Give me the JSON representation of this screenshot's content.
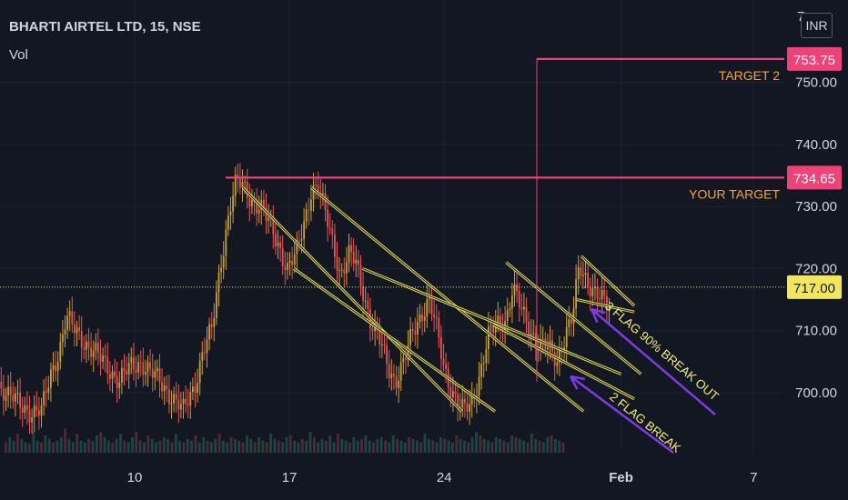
{
  "header": {
    "symbol": "BHARTI AIRTEL LTD, 15, NSE",
    "volume_label": "Vol",
    "currency": "INR"
  },
  "chart_data": {
    "type": "candlestick",
    "title": "BHARTI AIRTEL LTD, 15, NSE",
    "y_ticks": [
      700,
      710,
      720,
      730,
      740,
      750
    ],
    "y_top_partial_label": "7",
    "x_ticks": [
      {
        "label": "10",
        "day": 10
      },
      {
        "label": "17",
        "day": 17
      },
      {
        "label": "24",
        "day": 24
      },
      {
        "label": "Feb",
        "day": 32,
        "bold": true
      },
      {
        "label": "7",
        "day": 38
      }
    ],
    "current_price": 717.0,
    "current_price_label": "717.00",
    "horizontal_levels": [
      {
        "label": "YOUR TARGET",
        "value": 734.65,
        "value_label": "734.65"
      },
      {
        "label": "TARGET 2",
        "value": 753.75,
        "value_label": "753.75"
      }
    ],
    "annotations": [
      {
        "text": "3 FLAG 90% BREAK OUT"
      },
      {
        "text": "2 FLAG BREAK"
      }
    ],
    "price_path": [
      [
        3.0,
        697
      ],
      [
        3.5,
        703
      ],
      [
        4.2,
        700
      ],
      [
        4.8,
        698
      ],
      [
        5.3,
        697
      ],
      [
        5.8,
        697
      ],
      [
        6.2,
        703
      ],
      [
        6.6,
        707
      ],
      [
        6.9,
        712
      ],
      [
        7.3,
        710
      ],
      [
        7.8,
        708
      ],
      [
        8.3,
        706
      ],
      [
        8.8,
        704
      ],
      [
        9.3,
        702
      ],
      [
        9.8,
        704
      ],
      [
        10.3,
        705
      ],
      [
        10.8,
        703
      ],
      [
        11.3,
        701
      ],
      [
        11.8,
        699
      ],
      [
        12.2,
        697
      ],
      [
        12.7,
        701
      ],
      [
        13.1,
        707
      ],
      [
        13.5,
        710
      ],
      [
        13.9,
        721
      ],
      [
        14.3,
        730
      ],
      [
        14.6,
        734
      ],
      [
        14.9,
        733
      ],
      [
        15.3,
        731
      ],
      [
        15.7,
        730
      ],
      [
        16.1,
        727
      ],
      [
        16.5,
        724
      ],
      [
        16.9,
        720
      ],
      [
        17.3,
        722
      ],
      [
        17.7,
        728
      ],
      [
        18.0,
        733
      ],
      [
        18.3,
        733
      ],
      [
        18.6,
        729
      ],
      [
        19.0,
        724
      ],
      [
        19.3,
        719
      ],
      [
        19.7,
        722
      ],
      [
        20.0,
        721
      ],
      [
        20.3,
        717
      ],
      [
        20.7,
        711
      ],
      [
        21.1,
        708
      ],
      [
        21.5,
        704
      ],
      [
        21.8,
        702
      ],
      [
        22.2,
        705
      ],
      [
        22.6,
        710
      ],
      [
        23.0,
        713
      ],
      [
        23.3,
        715
      ],
      [
        23.6,
        711
      ],
      [
        24.0,
        704
      ],
      [
        24.4,
        700
      ],
      [
        24.8,
        697
      ],
      [
        25.2,
        698
      ],
      [
        25.6,
        703
      ],
      [
        26.0,
        709
      ],
      [
        26.4,
        711
      ],
      [
        26.8,
        712
      ],
      [
        27.1,
        717
      ],
      [
        27.5,
        713
      ],
      [
        27.9,
        710
      ],
      [
        28.3,
        708
      ],
      [
        28.7,
        707
      ],
      [
        29.1,
        705
      ],
      [
        29.5,
        710
      ],
      [
        29.8,
        712
      ],
      [
        30.1,
        720
      ],
      [
        30.5,
        718
      ],
      [
        30.9,
        716
      ],
      [
        31.3,
        714
      ],
      [
        31.5,
        713
      ]
    ],
    "volume_bars": [
      0.3,
      0.45,
      0.35,
      0.55,
      0.4,
      0.3,
      0.25,
      0.6,
      0.35,
      0.3,
      0.5,
      0.4,
      0.3,
      0.35,
      0.45,
      0.7,
      0.4,
      0.3,
      0.55,
      0.35,
      0.3,
      0.4,
      0.35,
      0.5,
      0.6,
      0.45,
      0.35,
      0.3,
      0.4,
      0.55,
      0.35,
      0.3,
      0.45,
      0.6,
      0.35,
      0.3,
      0.5,
      0.4,
      0.3,
      0.35,
      0.45,
      0.4,
      0.3,
      0.55,
      0.35,
      0.3,
      0.4,
      0.35,
      0.5,
      0.3,
      0.45,
      0.35,
      0.3,
      0.4,
      0.55,
      0.35,
      0.3,
      0.45,
      0.4,
      0.35,
      0.3,
      0.5,
      0.4,
      0.3,
      0.45,
      0.35,
      0.3,
      0.55,
      0.4,
      0.35,
      0.3,
      0.45,
      0.5,
      0.35,
      0.3,
      0.4,
      0.35,
      0.6,
      0.45,
      0.3,
      0.4,
      0.35,
      0.5,
      0.3,
      0.55,
      0.4,
      0.35,
      0.3,
      0.45,
      0.35,
      0.4,
      0.5,
      0.35,
      0.3,
      0.4,
      0.45,
      0.35,
      0.3,
      0.5,
      0.4,
      0.35,
      0.3,
      0.45,
      0.4,
      0.35,
      0.3,
      0.55,
      0.4,
      0.35,
      0.3,
      0.45,
      0.4,
      0.35,
      0.3,
      0.5,
      0.4,
      0.35,
      0.3,
      0.45,
      0.6,
      0.5,
      0.4,
      0.35,
      0.3,
      0.45,
      0.4,
      0.35,
      0.3,
      0.5,
      0.45,
      0.4,
      0.35,
      0.3,
      0.55,
      0.4,
      0.35,
      0.3,
      0.45,
      0.5,
      0.4,
      0.35,
      0.3
    ],
    "trend_channels": [
      {
        "color": "#e9e25a",
        "lines": [
          [
            [
              14.9,
              733
            ],
            [
              24.8,
              697
            ]
          ],
          [
            [
              17.2,
              720
            ],
            [
              26.3,
              697
            ]
          ]
        ]
      },
      {
        "color": "#e9e25a",
        "lines": [
          [
            [
              18.0,
              733
            ],
            [
              30.3,
              697
            ]
          ],
          [
            [
              20.3,
              720
            ],
            [
              32.0,
              703
            ]
          ]
        ]
      },
      {
        "color": "#e9e25a",
        "lines": [
          [
            [
              26.8,
              721
            ],
            [
              32.9,
              703
            ]
          ],
          [
            [
              26.2,
              711
            ],
            [
              32.6,
              699
            ]
          ]
        ]
      },
      {
        "color": "#e9e25a",
        "lines": [
          [
            [
              30.2,
              722
            ],
            [
              32.6,
              714
            ]
          ],
          [
            [
              30.0,
              715
            ],
            [
              32.6,
              713
            ]
          ]
        ]
      }
    ],
    "colors": {
      "background": "#131722",
      "grid": "#1e2230",
      "axis_text": "#d1d4dc",
      "candle_up": "#26a69a",
      "candle_down": "#ef5350",
      "level_line": "#ef4278",
      "level_badge": "#ef4278",
      "current_line": "#e9e25a",
      "current_badge": "#f1e65c",
      "channel": "#e9e25a",
      "arrow": "#7b3ce8",
      "annotation_text": "#f2ec7a",
      "level_text": "#f7a23d"
    }
  }
}
